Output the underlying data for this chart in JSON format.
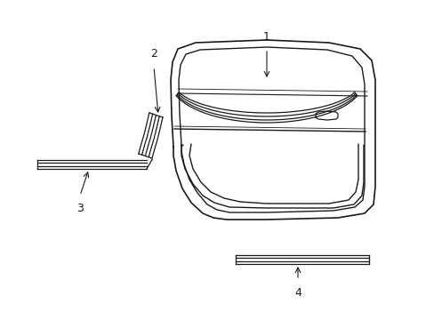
{
  "background_color": "#ffffff",
  "line_color": "#1a1a1a",
  "label_color": "#1a1a1a",
  "fig_width": 4.89,
  "fig_height": 3.6,
  "dpi": 100
}
